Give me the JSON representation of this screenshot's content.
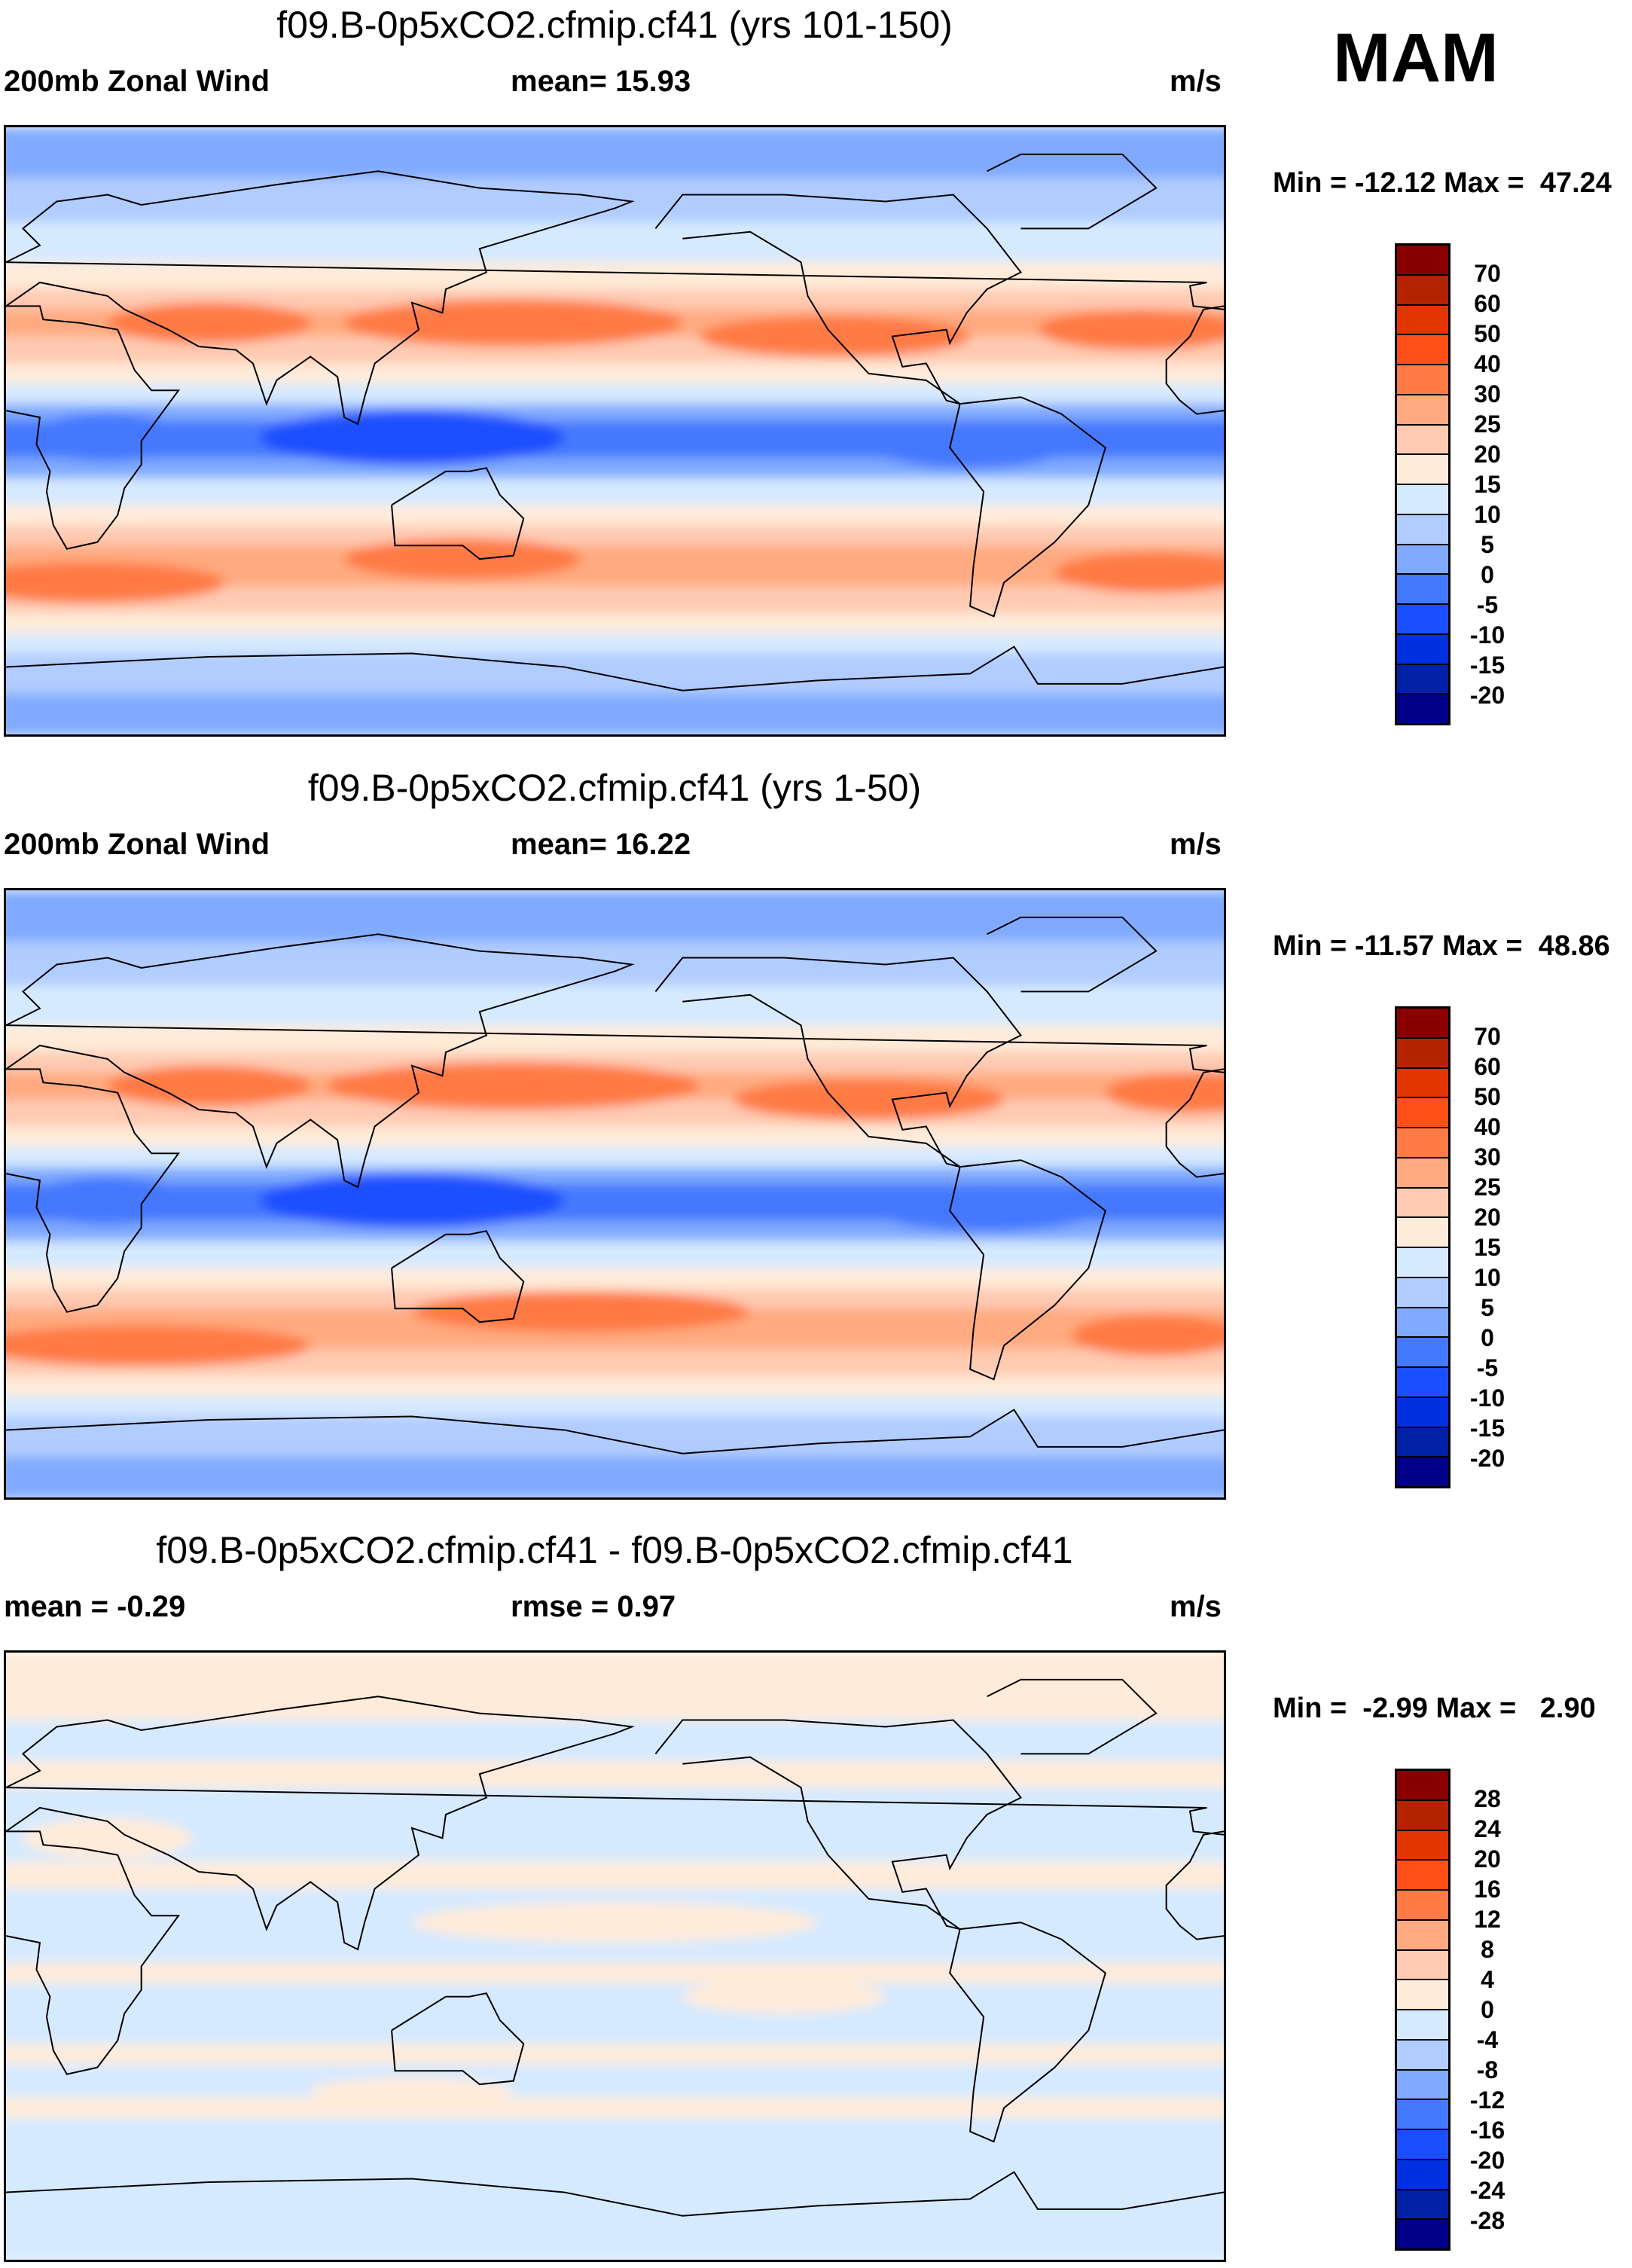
{
  "season": "MAM",
  "chart_data": [
    {
      "type": "heatmap",
      "title": "f09.B-0p5xCO2.cfmip.cf41 (yrs 101-150)",
      "left_label": "200mb Zonal Wind",
      "center_label": "mean=  15.93",
      "right_label": "m/s",
      "minmax": "Min = -12.12 Max =  47.24",
      "levels": [
        "70",
        "60",
        "50",
        "40",
        "30",
        "25",
        "20",
        "15",
        "10",
        "5",
        "0",
        "-5",
        "-10",
        "-15",
        "-20"
      ],
      "colors": [
        "#8a0000",
        "#b42300",
        "#e23500",
        "#ff5019",
        "#ff7a45",
        "#ffaa80",
        "#ffcab2",
        "#ffebd9",
        "#d6eaff",
        "#b1ccff",
        "#80aaff",
        "#4478ff",
        "#1a4fff",
        "#0030e0",
        "#0021a6",
        "#000088"
      ]
    },
    {
      "type": "heatmap",
      "title": "f09.B-0p5xCO2.cfmip.cf41 (yrs 1-50)",
      "left_label": "200mb Zonal Wind",
      "center_label": "mean=  16.22",
      "right_label": "m/s",
      "minmax": "Min = -11.57 Max =  48.86",
      "levels": [
        "70",
        "60",
        "50",
        "40",
        "30",
        "25",
        "20",
        "15",
        "10",
        "5",
        "0",
        "-5",
        "-10",
        "-15",
        "-20"
      ],
      "colors": [
        "#8a0000",
        "#b42300",
        "#e23500",
        "#ff5019",
        "#ff7a45",
        "#ffaa80",
        "#ffcab2",
        "#ffebd9",
        "#d6eaff",
        "#b1ccff",
        "#80aaff",
        "#4478ff",
        "#1a4fff",
        "#0030e0",
        "#0021a6",
        "#000088"
      ]
    },
    {
      "type": "heatmap",
      "title": "f09.B-0p5xCO2.cfmip.cf41 - f09.B-0p5xCO2.cfmip.cf41",
      "left_label": "mean =  -0.29",
      "center_label": "rmse =   0.97",
      "right_label": "m/s",
      "minmax": "Min =  -2.99 Max =   2.90",
      "levels": [
        "28",
        "24",
        "20",
        "16",
        "12",
        "8",
        "4",
        "0",
        "-4",
        "-8",
        "-12",
        "-16",
        "-20",
        "-24",
        "-28"
      ],
      "colors": [
        "#8a0000",
        "#b42300",
        "#e23500",
        "#ff5019",
        "#ff7a45",
        "#ffaa80",
        "#ffcab2",
        "#ffebd9",
        "#d6eaff",
        "#b1ccff",
        "#80aaff",
        "#4478ff",
        "#1a4fff",
        "#0030e0",
        "#0021a6",
        "#000088"
      ]
    }
  ]
}
